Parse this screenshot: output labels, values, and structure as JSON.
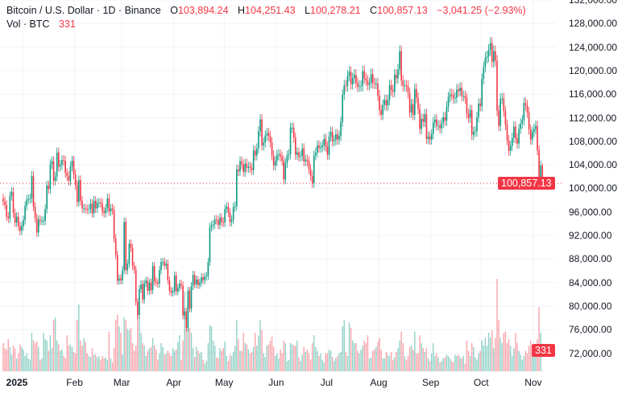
{
  "header": {
    "symbol": "Bitcoin / U.S. Dollar · 1D · Binance",
    "open_label": "O",
    "open": "103,894.24",
    "high_label": "H",
    "high": "104,251.43",
    "low_label": "L",
    "low": "100,278.21",
    "close_label": "C",
    "close": "100,857.13",
    "change": "−3,041.25 (−2.93%)",
    "vol_label": "Vol · BTC",
    "vol": "331"
  },
  "price_tag": "100,857.13",
  "volume_tag": "331",
  "colors": {
    "up": "#089981",
    "down": "#f23645",
    "grid": "#f0f3fa"
  },
  "chart_data": {
    "type": "candlestick",
    "title": "Bitcoin / U.S. Dollar · 1D · Binance",
    "ylim": [
      72000,
      132000
    ],
    "y_ticks": [
      "132,000.00",
      "128,000.00",
      "124,000.00",
      "120,000.00",
      "116,000.00",
      "112,000.00",
      "108,000.00",
      "104,000.00",
      "100,000.00",
      "96,000.00",
      "92,000.00",
      "88,000.00",
      "84,000.00",
      "80,000.00",
      "76,000.00",
      "72,000.00"
    ],
    "x_ticks": [
      "2025",
      "Feb",
      "Mar",
      "Apr",
      "May",
      "Jun",
      "Jul",
      "Aug",
      "Sep",
      "Oct",
      "Nov"
    ],
    "last_candle": {
      "open": 103894.24,
      "high": 104251.43,
      "low": 100278.21,
      "close": 100857.13,
      "volume": 331
    },
    "grid": true,
    "months": [
      {
        "month": "2024-12",
        "first_day": 20,
        "close": [
          97800,
          97200,
          95200,
          94900,
          98700,
          99400,
          95800,
          94200,
          95200,
          93600,
          92800,
          93600
        ],
        "volume": [
          22000,
          18000,
          17000,
          25000,
          19000,
          13000,
          20000,
          18000,
          10000,
          14000,
          21000,
          19000
        ]
      },
      {
        "month": "2025-01",
        "first_day": 1,
        "close": [
          94600,
          97000,
          98100,
          98200,
          98300,
          102100,
          96900,
          95000,
          92500,
          94700,
          94500,
          94500,
          94500,
          96500,
          100500,
          99900,
          104100,
          104600,
          101300,
          102000,
          106100,
          103700,
          104000,
          104800,
          104700,
          102600,
          102100,
          101300,
          103700,
          104700,
          102400
        ],
        "volume": [
          17000,
          12000,
          14000,
          10000,
          9000,
          30000,
          24000,
          22000,
          23000,
          19000,
          9000,
          10000,
          30000,
          25000,
          24000,
          16000,
          28000,
          18000,
          40000,
          42000,
          24000,
          21000,
          16000,
          17000,
          12000,
          10000,
          28000,
          20000,
          21000,
          19000,
          15000
        ]
      },
      {
        "month": "2025-02",
        "first_day": 1,
        "close": [
          100600,
          97700,
          101400,
          97900,
          96600,
          96600,
          96500,
          96400,
          96500,
          97400,
          95800,
          97900,
          96600,
          97500,
          97600,
          97500,
          96100,
          95800,
          96600,
          98300,
          96100,
          96600,
          96300,
          91500,
          88700,
          84300,
          84700,
          84400
        ],
        "volume": [
          14000,
          40000,
          52000,
          24000,
          20000,
          26000,
          23000,
          14000,
          12000,
          11000,
          18000,
          13000,
          13000,
          11000,
          12000,
          9000,
          12000,
          10000,
          11000,
          9000,
          31000,
          10000,
          7000,
          18000,
          40000,
          44000,
          35000,
          30000
        ]
      },
      {
        "month": "2025-03",
        "first_day": 1,
        "close": [
          86100,
          94300,
          86100,
          87200,
          90600,
          89900,
          86800,
          86200,
          80700,
          78500,
          82900,
          83700,
          81100,
          83900,
          84300,
          82600,
          84000,
          82700,
          86800,
          84200,
          84000,
          83800,
          86100,
          87500,
          87500,
          86900,
          87200,
          84400,
          82600,
          82300,
          82500
        ],
        "volume": [
          13000,
          42000,
          40000,
          33000,
          32000,
          34000,
          22000,
          16000,
          20000,
          48000,
          42000,
          30000,
          22000,
          20000,
          12000,
          16000,
          18000,
          19000,
          26000,
          20000,
          17000,
          9000,
          14000,
          22000,
          19000,
          13000,
          14000,
          16000,
          14000,
          12000,
          18000
        ]
      },
      {
        "month": "2025-04",
        "first_day": 1,
        "close": [
          85200,
          82500,
          83100,
          83800,
          83500,
          78400,
          79100,
          76300,
          82600,
          79600,
          83400,
          85300,
          83700,
          84500,
          83600,
          84000,
          84900,
          84400,
          85000,
          85100,
          87500,
          93400,
          93700,
          93900,
          94700,
          94600,
          93800,
          95000,
          94300,
          94200
        ],
        "volume": [
          16000,
          17000,
          23000,
          28000,
          9000,
          24000,
          62000,
          36000,
          58000,
          34000,
          30000,
          18000,
          11000,
          19000,
          16000,
          14000,
          15000,
          9000,
          6000,
          8000,
          22000,
          36000,
          35000,
          24000,
          20000,
          11000,
          10000,
          18000,
          16000,
          18000
        ]
      },
      {
        "month": "2025-05",
        "first_day": 1,
        "close": [
          96500,
          96900,
          95900,
          94300,
          94700,
          96800,
          97000,
          103200,
          102900,
          104600,
          104100,
          102800,
          104200,
          103500,
          103700,
          103500,
          103100,
          106400,
          105600,
          106800,
          109700,
          111700,
          107300,
          107800,
          109000,
          109400,
          108900,
          107800,
          105600,
          103900,
          104600
        ],
        "volume": [
          23000,
          12000,
          8000,
          13000,
          12000,
          15000,
          20000,
          40000,
          25000,
          16000,
          16000,
          30000,
          22000,
          21000,
          17000,
          14000,
          15000,
          19000,
          30000,
          20000,
          28000,
          40000,
          32000,
          14000,
          11000,
          20000,
          21000,
          24000,
          27000,
          19000,
          12000
        ]
      },
      {
        "month": "2025-06",
        "first_day": 1,
        "close": [
          105700,
          105800,
          105400,
          104700,
          101500,
          104300,
          105600,
          105800,
          110300,
          110300,
          108600,
          105700,
          106100,
          105400,
          105500,
          106800,
          104600,
          104900,
          104600,
          103300,
          102100,
          100900,
          105600,
          106100,
          107300,
          106900,
          107000,
          107300,
          108400,
          107100
        ],
        "volume": [
          14000,
          10000,
          17000,
          14000,
          24000,
          22000,
          8000,
          9000,
          22000,
          21000,
          20000,
          20000,
          24000,
          11000,
          8000,
          13000,
          19000,
          15000,
          17000,
          14000,
          9000,
          22000,
          28000,
          19000,
          16000,
          12000,
          14000,
          9000,
          7000,
          14000
        ]
      },
      {
        "month": "2025-07",
        "first_day": 1,
        "close": [
          105700,
          108800,
          109600,
          108000,
          108200,
          109200,
          108300,
          108900,
          111300,
          115900,
          117500,
          117400,
          119100,
          119800,
          117700,
          118700,
          119300,
          117900,
          117300,
          117400,
          117400,
          119900,
          118700,
          118300,
          117600,
          117900,
          119400,
          117900,
          117800,
          117800,
          115800
        ],
        "volume": [
          14000,
          17000,
          16000,
          11000,
          8000,
          10000,
          12000,
          14000,
          15000,
          35000,
          40000,
          15000,
          12000,
          38000,
          34000,
          24000,
          22000,
          22000,
          16000,
          14000,
          17000,
          20000,
          24000,
          22000,
          28000,
          10000,
          11000,
          16000,
          17000,
          19000,
          23000
        ]
      },
      {
        "month": "2025-08",
        "first_day": 1,
        "close": [
          113300,
          112500,
          114200,
          115000,
          114100,
          115000,
          117500,
          116700,
          116400,
          119300,
          118700,
          120200,
          123300,
          118300,
          117400,
          117500,
          117400,
          116200,
          112900,
          114300,
          112500,
          116900,
          115400,
          113500,
          110100,
          111800,
          111300,
          112600,
          108400,
          108800,
          108300
        ],
        "volume": [
          26000,
          17000,
          10000,
          10000,
          15000,
          13000,
          12000,
          15000,
          9000,
          11000,
          15000,
          18000,
          24000,
          31000,
          22000,
          12000,
          9000,
          12000,
          19000,
          20000,
          17000,
          31000,
          14000,
          14000,
          28000,
          22000,
          18000,
          15000,
          18000,
          10000,
          8000
        ]
      },
      {
        "month": "2025-09",
        "first_day": 1,
        "close": [
          109200,
          111200,
          111700,
          110700,
          110700,
          110200,
          111100,
          112100,
          111500,
          113900,
          115500,
          116000,
          115900,
          115300,
          115400,
          116800,
          116500,
          117100,
          115700,
          115700,
          115300,
          112700,
          112000,
          113300,
          109100,
          109600,
          109700,
          112100,
          114400,
          114000
        ],
        "volume": [
          14000,
          22000,
          12000,
          14000,
          11000,
          7000,
          8000,
          10000,
          11000,
          13000,
          12000,
          10000,
          8000,
          7000,
          13000,
          12000,
          13000,
          11000,
          10000,
          12000,
          6000,
          24000,
          16000,
          12000,
          22000,
          19000,
          11000,
          9000,
          14000,
          16000
        ]
      },
      {
        "month": "2025-10",
        "first_day": 1,
        "close": [
          118600,
          120600,
          122200,
          122400,
          123500,
          124700,
          121500,
          123300,
          121700,
          113200,
          110600,
          115200,
          115300,
          113100,
          110800,
          108200,
          106400,
          107200,
          108600,
          110500,
          108500,
          107600,
          110100,
          111000,
          111600,
          114500,
          114100,
          112900,
          110000,
          108300,
          109600
        ],
        "volume": [
          24000,
          20000,
          26000,
          20000,
          30000,
          26000,
          32000,
          18000,
          26000,
          72000,
          40000,
          26000,
          22000,
          30000,
          31000,
          22000,
          25000,
          20000,
          12000,
          18000,
          30000,
          22000,
          16000,
          13000,
          9000,
          12000,
          16000,
          14000,
          20000,
          24000,
          20000
        ]
      },
      {
        "month": "2025-11",
        "first_day": 1,
        "close": [
          110100,
          110600,
          106500,
          101500,
          103900,
          100857.13
        ],
        "volume": [
          12000,
          16000,
          25000,
          50000,
          30000,
          331
        ]
      }
    ]
  }
}
